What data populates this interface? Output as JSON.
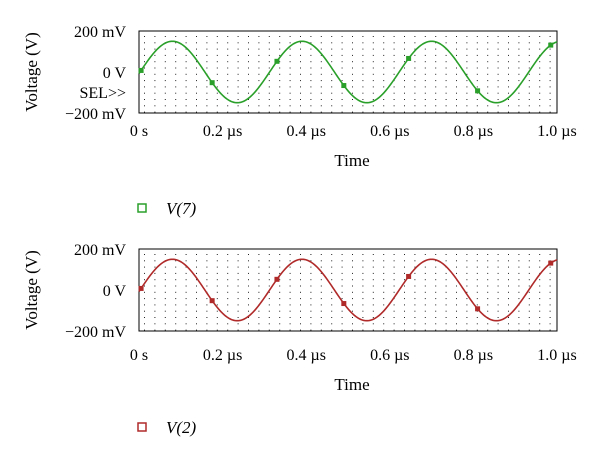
{
  "colors": {
    "top": "#2aa02a",
    "bottom": "#b02a2a"
  },
  "chart_data": [
    {
      "type": "line",
      "xlabel": "Time",
      "ylabel": "Voltage (V)",
      "xlim": [
        0,
        1.0
      ],
      "ylim": [
        -200,
        200
      ],
      "x_ticks": [
        "0 s",
        "0.2 µs",
        "0.4 µs",
        "0.6 µs",
        "0.8 µs",
        "1.0 µs"
      ],
      "y_ticks": [
        "200 mV",
        "0 V",
        "−200 mV"
      ],
      "annotation": "SEL>>",
      "grid": "dotted",
      "series": [
        {
          "name": "V(7)",
          "color": "#2aa02a",
          "amplitude_mV": 150,
          "period_us": 0.31,
          "peak_at_us": 0.08,
          "x": [
            0.0,
            0.08,
            0.235,
            0.39,
            0.545,
            0.7,
            0.855,
            1.0
          ],
          "y": [
            20,
            150,
            -150,
            150,
            -150,
            150,
            -150,
            145
          ],
          "marker_x": [
            0.005,
            0.175,
            0.33,
            0.49,
            0.645,
            0.81,
            0.985
          ]
        }
      ]
    },
    {
      "type": "line",
      "xlabel": "Time",
      "ylabel": "Voltage (V)",
      "xlim": [
        0,
        1.0
      ],
      "ylim": [
        -200,
        200
      ],
      "x_ticks": [
        "0 s",
        "0.2 µs",
        "0.4 µs",
        "0.6 µs",
        "0.8 µs",
        "1.0 µs"
      ],
      "y_ticks": [
        "200 mV",
        "0 V",
        "−200 mV"
      ],
      "grid": "dotted",
      "series": [
        {
          "name": "V(2)",
          "color": "#b02a2a",
          "amplitude_mV": 150,
          "period_us": 0.31,
          "peak_at_us": 0.08,
          "x": [
            0.0,
            0.08,
            0.235,
            0.39,
            0.545,
            0.7,
            0.855,
            1.0
          ],
          "y": [
            20,
            150,
            -150,
            150,
            -150,
            150,
            -150,
            145
          ],
          "marker_x": [
            0.005,
            0.175,
            0.33,
            0.49,
            0.645,
            0.81,
            0.985
          ]
        }
      ]
    }
  ]
}
